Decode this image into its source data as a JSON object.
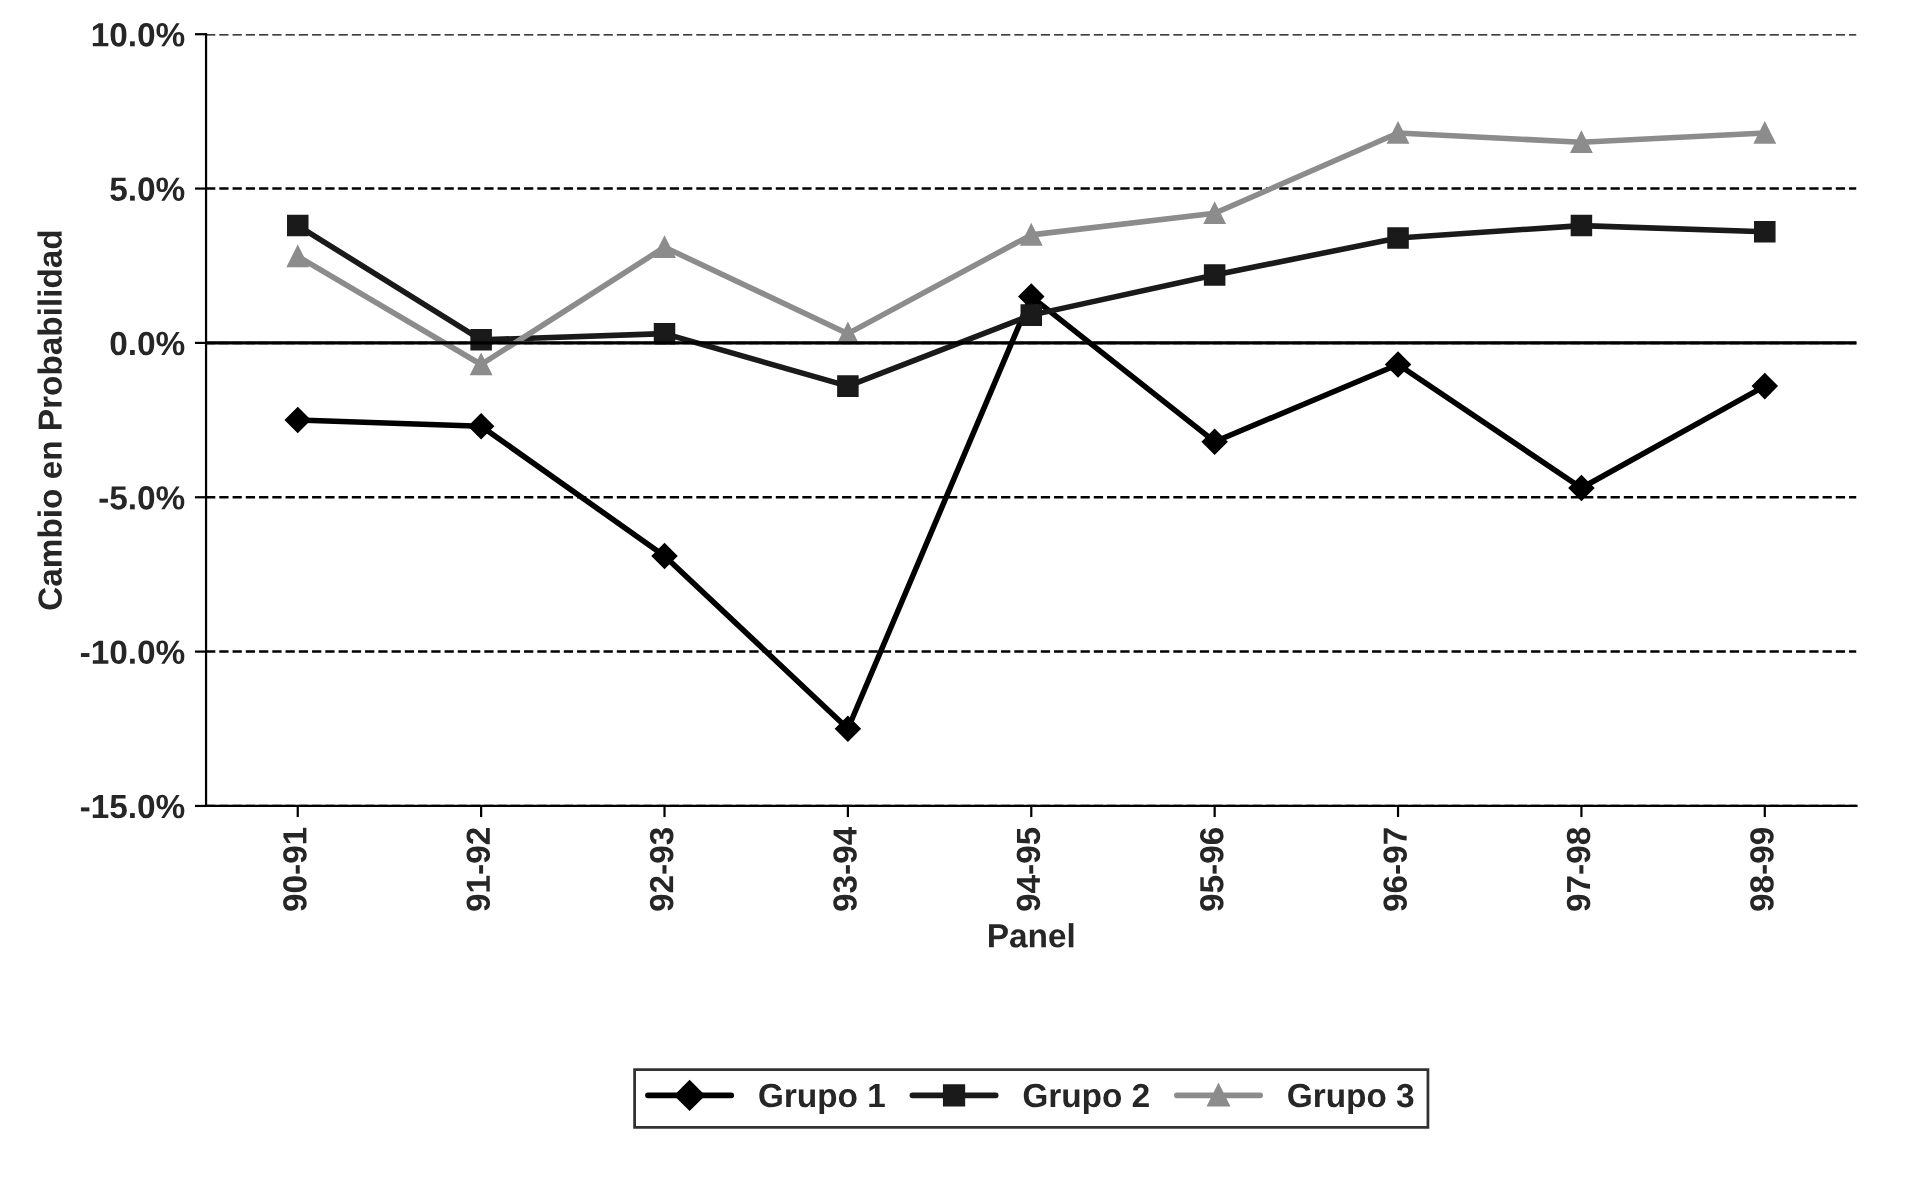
{
  "chart_data": {
    "type": "line",
    "xlabel": "Panel",
    "ylabel": "Cambio en Probabilidad",
    "categories": [
      "90-91",
      "91-92",
      "92-93",
      "93-94",
      "94-95",
      "95-96",
      "96-97",
      "97-98",
      "98-99"
    ],
    "series": [
      {
        "name": "Grupo 1",
        "color": "#000000",
        "marker": "diamond",
        "values": [
          -2.5,
          -2.7,
          -6.9,
          -12.5,
          1.5,
          -3.2,
          -0.7,
          -4.7,
          -1.4
        ]
      },
      {
        "name": "Grupo 2",
        "color": "#1a1a1a",
        "marker": "square",
        "values": [
          3.8,
          0.1,
          0.3,
          -1.4,
          0.9,
          2.2,
          3.4,
          3.8,
          3.6
        ]
      },
      {
        "name": "Grupo 3",
        "color": "#8c8c8c",
        "marker": "triangle",
        "values": [
          2.8,
          -0.7,
          3.1,
          0.3,
          3.5,
          4.2,
          6.8,
          6.5,
          6.8
        ]
      }
    ],
    "ylim": [
      -15,
      10
    ],
    "yticks": [
      {
        "value": -15,
        "label": "-15.0%"
      },
      {
        "value": -10,
        "label": "-10.0%"
      },
      {
        "value": -5,
        "label": "-5.0%"
      },
      {
        "value": 0,
        "label": "0.0%"
      },
      {
        "value": 5,
        "label": "5.0%"
      },
      {
        "value": 10,
        "label": "10.0%"
      }
    ],
    "grid": "y",
    "legend": "bottom",
    "line_style": "solid",
    "ref_lines": [
      {
        "axis": "y",
        "value": 0,
        "color": "#000000",
        "line_style": "solid"
      }
    ]
  }
}
